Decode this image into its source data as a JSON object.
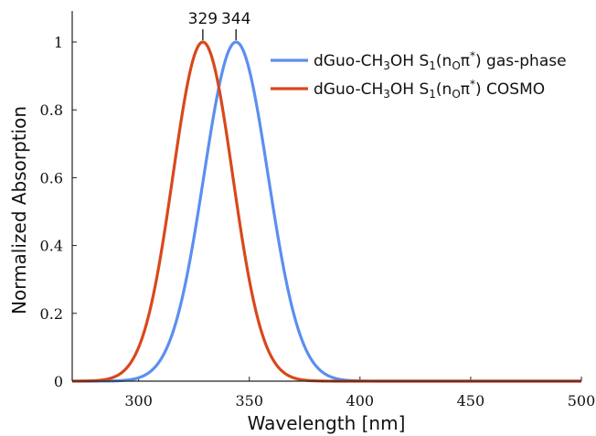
{
  "chart_data": {
    "type": "line",
    "xlabel": "Wavelength [nm]",
    "ylabel": "Normalized Absorption",
    "xlim": [
      270,
      500
    ],
    "ylim": [
      0,
      1
    ],
    "xticks": [
      300,
      350,
      400,
      450,
      500
    ],
    "yticks": [
      0,
      0.2,
      0.4,
      0.6,
      0.8,
      1
    ],
    "x_tick_labels": [
      "300",
      "350",
      "400",
      "450",
      "500"
    ],
    "y_tick_labels": [
      "0",
      "0.2",
      "0.4",
      "0.6",
      "0.8",
      "1"
    ],
    "legend_position": "top-right",
    "series": [
      {
        "id": "gas",
        "legend": {
          "prefix": "dGuo-CH",
          "sub1": "3",
          "mid1": "OH S",
          "sub2": "1",
          "mid2": "(n",
          "sub3": "O",
          "mid3": "π",
          "sup": "*",
          "suffix": ") gas-phase"
        },
        "color": "#5b8ff0",
        "peak": 344,
        "sigma": 14.5,
        "x": [
          270,
          280,
          290,
          300,
          305,
          310,
          315,
          320,
          325,
          330,
          335,
          340,
          344,
          350,
          355,
          360,
          365,
          370,
          375,
          380,
          390,
          400,
          420,
          450,
          500
        ],
        "y": [
          0.0,
          0.0,
          0.0,
          0.01,
          0.03,
          0.07,
          0.14,
          0.26,
          0.44,
          0.65,
          0.84,
          0.96,
          1.0,
          0.96,
          0.86,
          0.69,
          0.49,
          0.32,
          0.19,
          0.1,
          0.03,
          0.01,
          0.0,
          0.0,
          0.0
        ]
      },
      {
        "id": "cosmo",
        "legend": {
          "prefix": "dGuo-CH",
          "sub1": "3",
          "mid1": "OH S",
          "sub2": "1",
          "mid2": "(n",
          "sub3": "O",
          "mid3": "π",
          "sup": "*",
          "suffix": ") COSMO"
        },
        "color": "#d9481c",
        "peak": 329,
        "sigma": 13.5,
        "x": [
          270,
          280,
          285,
          290,
          295,
          300,
          305,
          310,
          315,
          320,
          325,
          329,
          335,
          340,
          345,
          350,
          355,
          360,
          365,
          370,
          380,
          390,
          400,
          450,
          500
        ],
        "y": [
          0.0,
          0.0,
          0.01,
          0.02,
          0.05,
          0.1,
          0.21,
          0.37,
          0.58,
          0.78,
          0.94,
          1.0,
          0.91,
          0.72,
          0.5,
          0.32,
          0.18,
          0.09,
          0.04,
          0.02,
          0.0,
          0.0,
          0.0,
          0.0,
          0.0
        ]
      }
    ],
    "annotations": [
      {
        "text": "329",
        "x": 329,
        "y": 1.0
      },
      {
        "text": "344",
        "x": 344,
        "y": 1.0
      }
    ]
  }
}
